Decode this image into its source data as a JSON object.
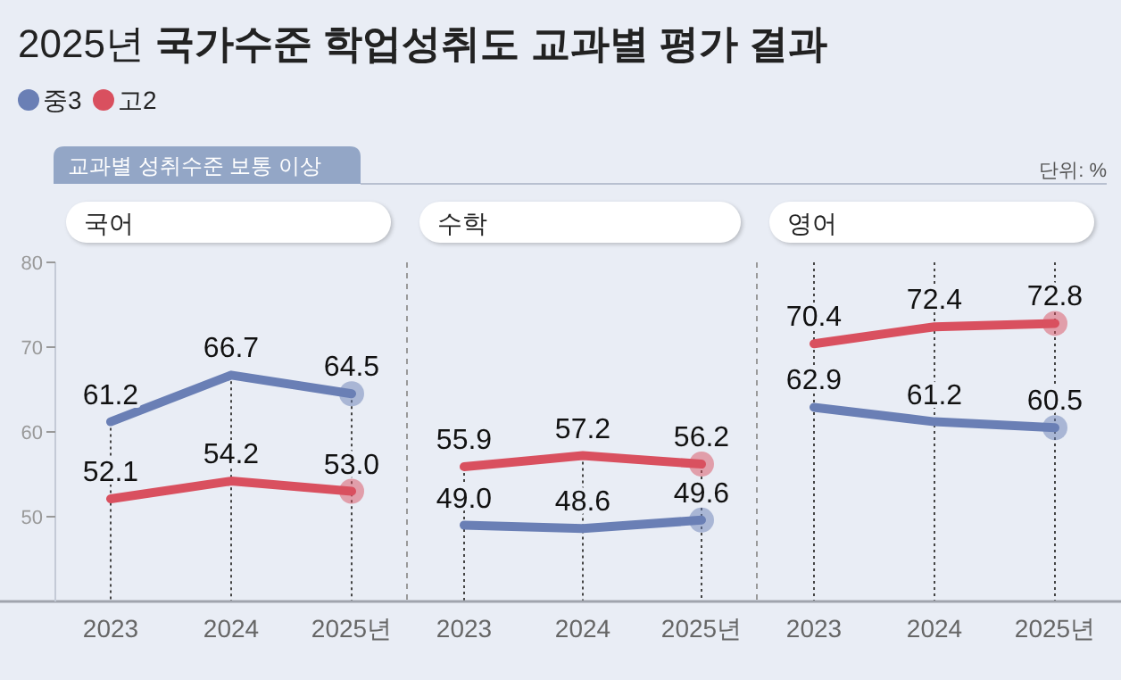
{
  "chart_data": [
    {
      "type": "other",
      "title": "2025년 국가수준 학업성취도 교과별 평가 결과",
      "subtitle": "교과별 성취수준 보통 이상",
      "annotations": [
        "단위: %"
      ]
    },
    {
      "type": "line",
      "title": "국어",
      "categories": [
        "2023",
        "2024",
        "2025년"
      ],
      "ylim": [
        40,
        80
      ],
      "yticks": [
        50,
        60,
        70,
        80
      ],
      "legend": "top left",
      "series": [
        {
          "name": "중3",
          "color": "#6a7fb5",
          "values": [
            61.2,
            66.7,
            64.5
          ],
          "value_labels": [
            "61.2",
            "66.7",
            "64.5"
          ]
        },
        {
          "name": "고2",
          "color": "#d9505f",
          "values": [
            52.1,
            54.2,
            53.0
          ],
          "value_labels": [
            "52.1",
            "54.2",
            "53.0"
          ]
        }
      ]
    },
    {
      "type": "line",
      "title": "수학",
      "categories": [
        "2023",
        "2024",
        "2025년"
      ],
      "ylim": [
        40,
        80
      ],
      "tick_labels": "x",
      "series": [
        {
          "color": "#6a7fb5",
          "values": [
            49.0,
            48.6,
            49.6
          ],
          "value_labels": [
            "49.0",
            "48.6",
            "49.6"
          ]
        },
        {
          "color": "#d9505f",
          "values": [
            55.9,
            57.2,
            56.2
          ],
          "value_labels": [
            "55.9",
            "57.2",
            "56.2"
          ]
        }
      ]
    },
    {
      "type": "line",
      "title": "영어",
      "categories": [
        "2023",
        "2024",
        "2025년"
      ],
      "ylim": [
        40,
        80
      ],
      "tick_labels": "x",
      "grid": "x",
      "series": [
        {
          "color": "#6a7fb5",
          "values": [
            62.9,
            61.2,
            60.5
          ],
          "value_labels": [
            "62.9",
            "61.2",
            "60.5"
          ]
        },
        {
          "color": "#d9505f",
          "values": [
            70.4,
            72.4,
            72.8
          ],
          "value_labels": [
            "70.4",
            "72.4",
            "72.8"
          ]
        }
      ]
    }
  ]
}
